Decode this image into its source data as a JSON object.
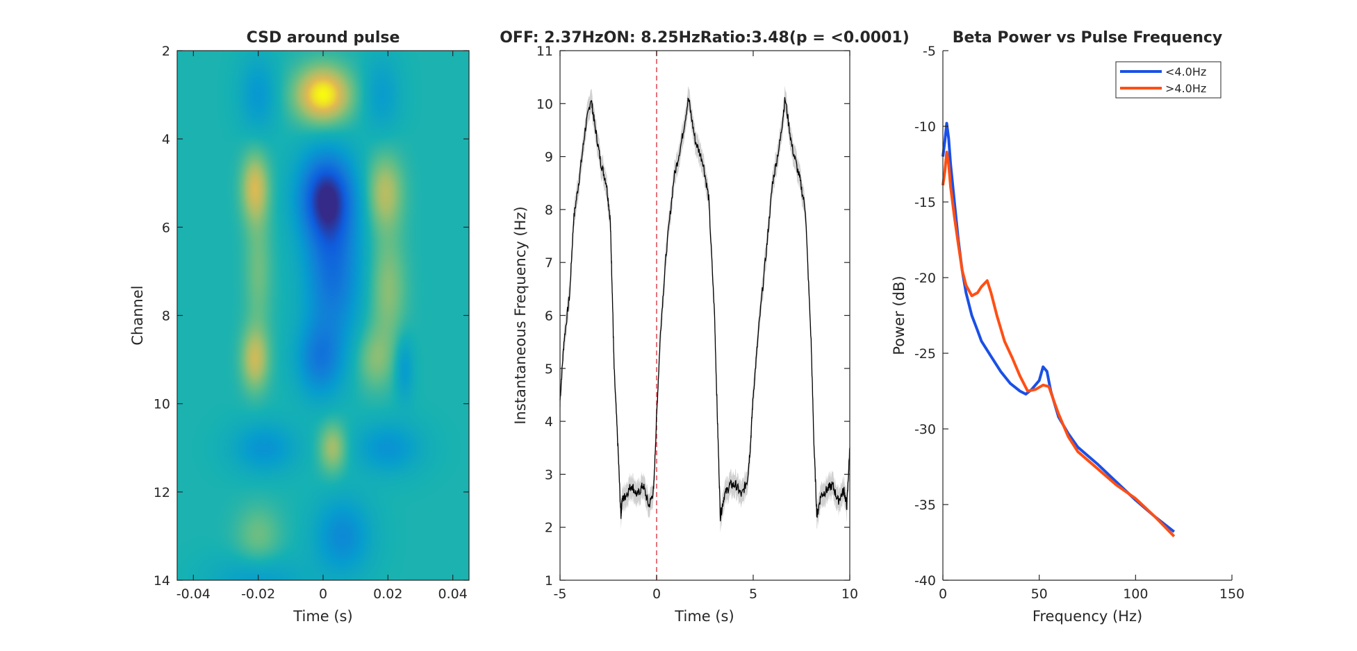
{
  "chart_data": [
    {
      "type": "heatmap",
      "title": "CSD around pulse",
      "xlabel": "Time (s)",
      "ylabel": "Channel",
      "xlim": [
        -0.045,
        0.045
      ],
      "ylim": [
        2,
        14
      ],
      "y_reversed": true,
      "colormap": "parula",
      "xticks": [
        -0.04,
        -0.02,
        0,
        0.02,
        0.04
      ],
      "xtick_labels": [
        "-0.04",
        "-0.02",
        "0",
        "0.02",
        "0.04"
      ],
      "yticks": [
        2,
        4,
        6,
        8,
        10,
        12,
        14
      ],
      "ytick_labels": [
        "2",
        "4",
        "6",
        "8",
        "10",
        "12",
        "14"
      ],
      "features": [
        {
          "t": 0.0,
          "ch": 3.0,
          "amp": 1.0,
          "st": 0.006,
          "sc": 0.45
        },
        {
          "t": -0.02,
          "ch": 3.0,
          "amp": -0.35,
          "st": 0.004,
          "sc": 0.6
        },
        {
          "t": 0.018,
          "ch": 3.0,
          "amp": -0.3,
          "st": 0.004,
          "sc": 0.6
        },
        {
          "t": 0.001,
          "ch": 5.3,
          "amp": -1.15,
          "st": 0.006,
          "sc": 0.7
        },
        {
          "t": 0.003,
          "ch": 7.0,
          "amp": -0.75,
          "st": 0.006,
          "sc": 1.1
        },
        {
          "t": -0.001,
          "ch": 9.0,
          "amp": -0.6,
          "st": 0.005,
          "sc": 0.6
        },
        {
          "t": -0.021,
          "ch": 5.1,
          "amp": 0.65,
          "st": 0.003,
          "sc": 0.55
        },
        {
          "t": -0.02,
          "ch": 7.0,
          "amp": 0.3,
          "st": 0.003,
          "sc": 1.0
        },
        {
          "t": -0.021,
          "ch": 9.0,
          "amp": 0.6,
          "st": 0.003,
          "sc": 0.5
        },
        {
          "t": 0.019,
          "ch": 5.2,
          "amp": 0.55,
          "st": 0.004,
          "sc": 0.6
        },
        {
          "t": 0.02,
          "ch": 7.4,
          "amp": 0.4,
          "st": 0.004,
          "sc": 0.9
        },
        {
          "t": 0.016,
          "ch": 9.0,
          "amp": 0.35,
          "st": 0.004,
          "sc": 0.5
        },
        {
          "t": 0.025,
          "ch": 9.2,
          "amp": -0.35,
          "st": 0.002,
          "sc": 0.5
        },
        {
          "t": 0.003,
          "ch": 11.0,
          "amp": 0.5,
          "st": 0.003,
          "sc": 0.4
        },
        {
          "t": -0.018,
          "ch": 11.0,
          "amp": -0.4,
          "st": 0.007,
          "sc": 0.4
        },
        {
          "t": 0.02,
          "ch": 11.0,
          "amp": -0.4,
          "st": 0.007,
          "sc": 0.4
        },
        {
          "t": 0.006,
          "ch": 13.0,
          "amp": -0.5,
          "st": 0.006,
          "sc": 0.6
        },
        {
          "t": -0.02,
          "ch": 13.0,
          "amp": 0.3,
          "st": 0.005,
          "sc": 0.5
        },
        {
          "t": -0.02,
          "ch": 14.0,
          "amp": -0.3,
          "st": 0.01,
          "sc": 0.4
        }
      ]
    },
    {
      "type": "line",
      "title": "OFF: 2.37HzON: 8.25HzRatio:3.48(p = <0.0001)",
      "xlabel": "Time (s)",
      "ylabel": "Instantaneous Frequency (Hz)",
      "xlim": [
        -5,
        10
      ],
      "ylim": [
        1,
        11
      ],
      "xticks": [
        -5,
        0,
        5,
        10
      ],
      "xtick_labels": [
        "-5",
        "0",
        "5",
        "10"
      ],
      "yticks": [
        1,
        2,
        3,
        4,
        5,
        6,
        7,
        8,
        9,
        10,
        11
      ],
      "ytick_labels": [
        "1",
        "2",
        "3",
        "4",
        "5",
        "6",
        "7",
        "8",
        "9",
        "10",
        "11"
      ],
      "line_color": "#000000",
      "error_band_color": "#d0d0d0",
      "marker_line": {
        "x": 0,
        "color": "#e0505a",
        "style": "dashed"
      },
      "x": [
        -5.0,
        -4.8,
        -4.5,
        -4.3,
        -4.0,
        -3.7,
        -3.4,
        -3.2,
        -2.9,
        -2.6,
        -2.4,
        -2.3,
        -2.2,
        -2.0,
        -1.85,
        -1.8,
        -1.6,
        -1.3,
        -1.0,
        -0.7,
        -0.4,
        -0.15,
        0.0,
        0.2,
        0.5,
        0.9,
        1.3,
        1.65,
        2.0,
        2.4,
        2.7,
        3.0,
        3.15,
        3.3,
        3.5,
        3.8,
        4.1,
        4.4,
        4.7,
        4.85,
        5.0,
        5.3,
        5.7,
        6.0,
        6.4,
        6.65,
        7.0,
        7.4,
        7.7,
        8.0,
        8.15,
        8.3,
        8.5,
        8.8,
        9.1,
        9.4,
        9.7,
        9.85,
        10.0
      ],
      "y": [
        4.4,
        5.5,
        6.4,
        7.8,
        8.6,
        9.5,
        10.1,
        9.6,
        8.9,
        8.5,
        7.8,
        6.5,
        5.0,
        3.5,
        2.2,
        2.5,
        2.6,
        2.8,
        2.6,
        2.8,
        2.4,
        2.7,
        4.1,
        5.7,
        7.2,
        8.6,
        9.3,
        10.1,
        9.3,
        8.9,
        8.2,
        6.0,
        4.0,
        2.2,
        2.6,
        2.8,
        2.8,
        2.6,
        2.9,
        3.5,
        4.5,
        5.8,
        7.3,
        8.5,
        9.3,
        10.1,
        9.2,
        8.6,
        8.0,
        5.5,
        3.5,
        2.2,
        2.6,
        2.7,
        2.8,
        2.5,
        2.7,
        2.4,
        3.5
      ]
    },
    {
      "type": "line",
      "title": "Beta Power vs Pulse Frequency",
      "xlabel": "Frequency (Hz)",
      "ylabel": "Power (dB)",
      "xlim": [
        0,
        150
      ],
      "ylim": [
        -40,
        -5
      ],
      "xticks": [
        0,
        50,
        100,
        150
      ],
      "xtick_labels": [
        "0",
        "50",
        "100",
        "150"
      ],
      "yticks": [
        -40,
        -35,
        -30,
        -25,
        -20,
        -15,
        -10,
        -5
      ],
      "ytick_labels": [
        "-40",
        "-35",
        "-30",
        "-25",
        "-20",
        "-15",
        "-10",
        "-5"
      ],
      "legend_position": "top-right",
      "series": [
        {
          "name": "<4.0Hz",
          "color": "#1a50e6",
          "x": [
            0,
            1,
            2,
            3,
            4,
            6,
            8,
            10,
            12,
            15,
            18,
            20,
            25,
            30,
            35,
            40,
            43,
            46,
            50,
            52,
            54,
            56,
            60,
            65,
            70,
            80,
            90,
            100,
            110,
            120
          ],
          "y": [
            -12.0,
            -11.0,
            -9.8,
            -10.8,
            -12.5,
            -15.0,
            -17.5,
            -19.5,
            -21.0,
            -22.5,
            -23.5,
            -24.2,
            -25.2,
            -26.2,
            -27.0,
            -27.5,
            -27.7,
            -27.4,
            -26.8,
            -25.9,
            -26.2,
            -27.5,
            -29.2,
            -30.3,
            -31.2,
            -32.3,
            -33.5,
            -34.7,
            -35.8,
            -36.8
          ]
        },
        {
          "name": ">4.0Hz",
          "color": "#ff4f14",
          "x": [
            0,
            1,
            2,
            3,
            4,
            6,
            8,
            10,
            12,
            15,
            18,
            20,
            23,
            25,
            28,
            32,
            36,
            40,
            44,
            48,
            52,
            55,
            58,
            60,
            65,
            70,
            80,
            90,
            100,
            110,
            120
          ],
          "y": [
            -13.9,
            -13.0,
            -11.7,
            -12.5,
            -14.0,
            -16.0,
            -17.8,
            -19.5,
            -20.5,
            -21.2,
            -21.0,
            -20.6,
            -20.2,
            -21.0,
            -22.5,
            -24.2,
            -25.3,
            -26.5,
            -27.5,
            -27.4,
            -27.1,
            -27.2,
            -28.3,
            -29.0,
            -30.5,
            -31.5,
            -32.6,
            -33.7,
            -34.6,
            -35.8,
            -37.1
          ]
        }
      ]
    }
  ]
}
